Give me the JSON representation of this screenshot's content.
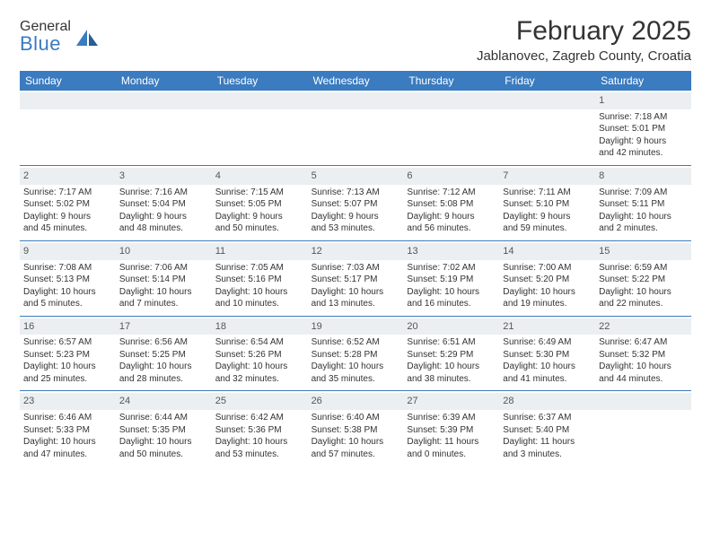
{
  "logo": {
    "top": "General",
    "bottom": "Blue"
  },
  "title": "February 2025",
  "location": "Jablanovec, Zagreb County, Croatia",
  "colors": {
    "header_bg": "#3b7bbf",
    "header_text": "#ffffff",
    "daynum_bg": "#eceff1",
    "border": "#3b7bbf",
    "logo_gray": "#6a6a6a",
    "logo_blue": "#3b7bbf"
  },
  "day_names": [
    "Sunday",
    "Monday",
    "Tuesday",
    "Wednesday",
    "Thursday",
    "Friday",
    "Saturday"
  ],
  "weeks": [
    [
      {
        "n": "",
        "l1": "",
        "l2": "",
        "l3": "",
        "l4": ""
      },
      {
        "n": "",
        "l1": "",
        "l2": "",
        "l3": "",
        "l4": ""
      },
      {
        "n": "",
        "l1": "",
        "l2": "",
        "l3": "",
        "l4": ""
      },
      {
        "n": "",
        "l1": "",
        "l2": "",
        "l3": "",
        "l4": ""
      },
      {
        "n": "",
        "l1": "",
        "l2": "",
        "l3": "",
        "l4": ""
      },
      {
        "n": "",
        "l1": "",
        "l2": "",
        "l3": "",
        "l4": ""
      },
      {
        "n": "1",
        "l1": "Sunrise: 7:18 AM",
        "l2": "Sunset: 5:01 PM",
        "l3": "Daylight: 9 hours",
        "l4": "and 42 minutes."
      }
    ],
    [
      {
        "n": "2",
        "l1": "Sunrise: 7:17 AM",
        "l2": "Sunset: 5:02 PM",
        "l3": "Daylight: 9 hours",
        "l4": "and 45 minutes."
      },
      {
        "n": "3",
        "l1": "Sunrise: 7:16 AM",
        "l2": "Sunset: 5:04 PM",
        "l3": "Daylight: 9 hours",
        "l4": "and 48 minutes."
      },
      {
        "n": "4",
        "l1": "Sunrise: 7:15 AM",
        "l2": "Sunset: 5:05 PM",
        "l3": "Daylight: 9 hours",
        "l4": "and 50 minutes."
      },
      {
        "n": "5",
        "l1": "Sunrise: 7:13 AM",
        "l2": "Sunset: 5:07 PM",
        "l3": "Daylight: 9 hours",
        "l4": "and 53 minutes."
      },
      {
        "n": "6",
        "l1": "Sunrise: 7:12 AM",
        "l2": "Sunset: 5:08 PM",
        "l3": "Daylight: 9 hours",
        "l4": "and 56 minutes."
      },
      {
        "n": "7",
        "l1": "Sunrise: 7:11 AM",
        "l2": "Sunset: 5:10 PM",
        "l3": "Daylight: 9 hours",
        "l4": "and 59 minutes."
      },
      {
        "n": "8",
        "l1": "Sunrise: 7:09 AM",
        "l2": "Sunset: 5:11 PM",
        "l3": "Daylight: 10 hours",
        "l4": "and 2 minutes."
      }
    ],
    [
      {
        "n": "9",
        "l1": "Sunrise: 7:08 AM",
        "l2": "Sunset: 5:13 PM",
        "l3": "Daylight: 10 hours",
        "l4": "and 5 minutes."
      },
      {
        "n": "10",
        "l1": "Sunrise: 7:06 AM",
        "l2": "Sunset: 5:14 PM",
        "l3": "Daylight: 10 hours",
        "l4": "and 7 minutes."
      },
      {
        "n": "11",
        "l1": "Sunrise: 7:05 AM",
        "l2": "Sunset: 5:16 PM",
        "l3": "Daylight: 10 hours",
        "l4": "and 10 minutes."
      },
      {
        "n": "12",
        "l1": "Sunrise: 7:03 AM",
        "l2": "Sunset: 5:17 PM",
        "l3": "Daylight: 10 hours",
        "l4": "and 13 minutes."
      },
      {
        "n": "13",
        "l1": "Sunrise: 7:02 AM",
        "l2": "Sunset: 5:19 PM",
        "l3": "Daylight: 10 hours",
        "l4": "and 16 minutes."
      },
      {
        "n": "14",
        "l1": "Sunrise: 7:00 AM",
        "l2": "Sunset: 5:20 PM",
        "l3": "Daylight: 10 hours",
        "l4": "and 19 minutes."
      },
      {
        "n": "15",
        "l1": "Sunrise: 6:59 AM",
        "l2": "Sunset: 5:22 PM",
        "l3": "Daylight: 10 hours",
        "l4": "and 22 minutes."
      }
    ],
    [
      {
        "n": "16",
        "l1": "Sunrise: 6:57 AM",
        "l2": "Sunset: 5:23 PM",
        "l3": "Daylight: 10 hours",
        "l4": "and 25 minutes."
      },
      {
        "n": "17",
        "l1": "Sunrise: 6:56 AM",
        "l2": "Sunset: 5:25 PM",
        "l3": "Daylight: 10 hours",
        "l4": "and 28 minutes."
      },
      {
        "n": "18",
        "l1": "Sunrise: 6:54 AM",
        "l2": "Sunset: 5:26 PM",
        "l3": "Daylight: 10 hours",
        "l4": "and 32 minutes."
      },
      {
        "n": "19",
        "l1": "Sunrise: 6:52 AM",
        "l2": "Sunset: 5:28 PM",
        "l3": "Daylight: 10 hours",
        "l4": "and 35 minutes."
      },
      {
        "n": "20",
        "l1": "Sunrise: 6:51 AM",
        "l2": "Sunset: 5:29 PM",
        "l3": "Daylight: 10 hours",
        "l4": "and 38 minutes."
      },
      {
        "n": "21",
        "l1": "Sunrise: 6:49 AM",
        "l2": "Sunset: 5:30 PM",
        "l3": "Daylight: 10 hours",
        "l4": "and 41 minutes."
      },
      {
        "n": "22",
        "l1": "Sunrise: 6:47 AM",
        "l2": "Sunset: 5:32 PM",
        "l3": "Daylight: 10 hours",
        "l4": "and 44 minutes."
      }
    ],
    [
      {
        "n": "23",
        "l1": "Sunrise: 6:46 AM",
        "l2": "Sunset: 5:33 PM",
        "l3": "Daylight: 10 hours",
        "l4": "and 47 minutes."
      },
      {
        "n": "24",
        "l1": "Sunrise: 6:44 AM",
        "l2": "Sunset: 5:35 PM",
        "l3": "Daylight: 10 hours",
        "l4": "and 50 minutes."
      },
      {
        "n": "25",
        "l1": "Sunrise: 6:42 AM",
        "l2": "Sunset: 5:36 PM",
        "l3": "Daylight: 10 hours",
        "l4": "and 53 minutes."
      },
      {
        "n": "26",
        "l1": "Sunrise: 6:40 AM",
        "l2": "Sunset: 5:38 PM",
        "l3": "Daylight: 10 hours",
        "l4": "and 57 minutes."
      },
      {
        "n": "27",
        "l1": "Sunrise: 6:39 AM",
        "l2": "Sunset: 5:39 PM",
        "l3": "Daylight: 11 hours",
        "l4": "and 0 minutes."
      },
      {
        "n": "28",
        "l1": "Sunrise: 6:37 AM",
        "l2": "Sunset: 5:40 PM",
        "l3": "Daylight: 11 hours",
        "l4": "and 3 minutes."
      },
      {
        "n": "",
        "l1": "",
        "l2": "",
        "l3": "",
        "l4": ""
      }
    ]
  ]
}
